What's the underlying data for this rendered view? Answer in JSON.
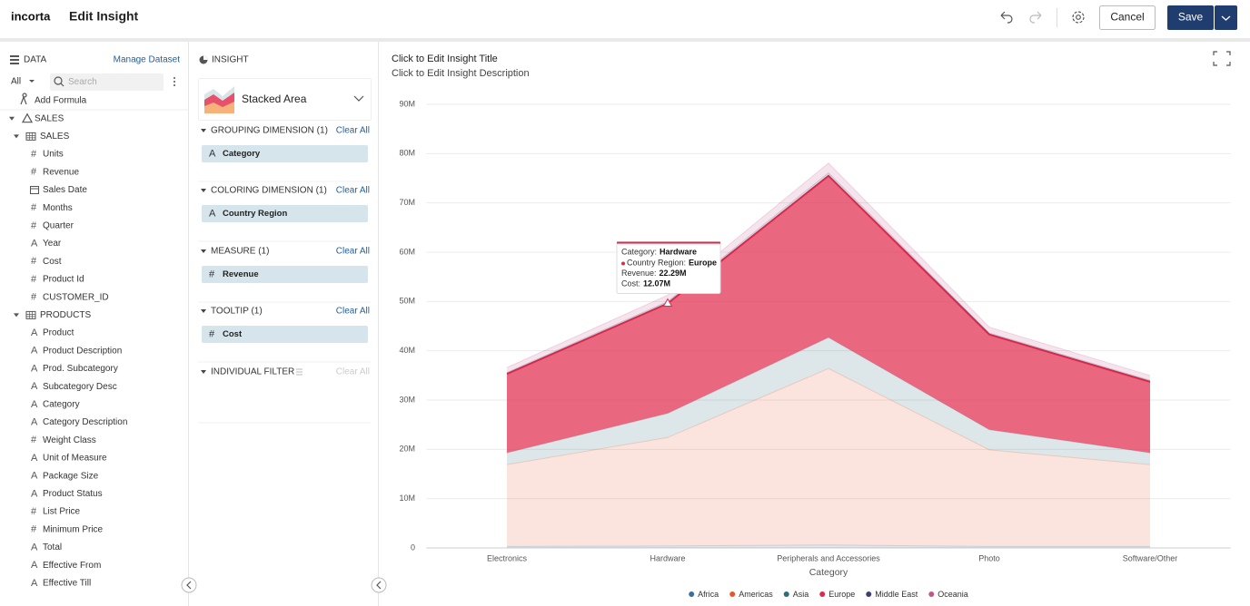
{
  "header": {
    "logo": "incorta",
    "title": "Edit Insight",
    "cancel": "Cancel",
    "save": "Save"
  },
  "data_panel": {
    "title": "DATA",
    "manage": "Manage Dataset",
    "filter": "All",
    "search": "Search",
    "add_formula": "Add Formula",
    "schema": {
      "name": "SALES",
      "tables": [
        {
          "name": "SALES",
          "fields": [
            {
              "icon": "#",
              "name": "Units"
            },
            {
              "icon": "#",
              "name": "Revenue"
            },
            {
              "name": "Sales Date"
            },
            {
              "icon": "#",
              "name": "Months"
            },
            {
              "icon": "#",
              "name": "Quarter"
            },
            {
              "icon": "A",
              "name": "Year"
            },
            {
              "icon": "#",
              "name": "Cost"
            },
            {
              "icon": "#",
              "name": "Product Id"
            },
            {
              "icon": "#",
              "name": "CUSTOMER_ID"
            }
          ]
        },
        {
          "name": "PRODUCTS",
          "fields": [
            {
              "icon": "A",
              "name": "Product"
            },
            {
              "icon": "A",
              "name": "Product Description"
            },
            {
              "icon": "A",
              "name": "Prod. Subcategory"
            },
            {
              "icon": "A",
              "name": "Subcategory Desc"
            },
            {
              "icon": "A",
              "name": "Category"
            },
            {
              "icon": "A",
              "name": "Category Description"
            },
            {
              "icon": "#",
              "name": "Weight Class"
            },
            {
              "icon": "A",
              "name": "Unit of Measure"
            },
            {
              "icon": "A",
              "name": "Package Size"
            },
            {
              "icon": "A",
              "name": "Product Status"
            },
            {
              "icon": "#",
              "name": "List Price"
            },
            {
              "icon": "#",
              "name": "Minimum Price"
            },
            {
              "icon": "A",
              "name": "Total"
            },
            {
              "icon": "A",
              "name": "Effective From"
            },
            {
              "icon": "A",
              "name": "Effective Till"
            }
          ]
        }
      ]
    }
  },
  "insight_panel": {
    "title": "INSIGHT",
    "chart_type": "Stacked Area",
    "sections": [
      {
        "title": "GROUPING DIMENSION (1)",
        "clear": "Clear All",
        "pill": {
          "icon": "A",
          "label": "Category"
        }
      },
      {
        "title": "COLORING DIMENSION (1)",
        "clear": "Clear All",
        "pill": {
          "icon": "A",
          "label": "Country Region"
        }
      },
      {
        "title": "MEASURE (1)",
        "clear": "Clear All",
        "pill": {
          "icon": "#",
          "label": "Revenue"
        }
      },
      {
        "title": "TOOLTIP (1)",
        "clear": "Clear All",
        "pill": {
          "icon": "#",
          "label": "Cost"
        }
      },
      {
        "title": "INDIVIDUAL FILTER",
        "clear": "Clear All"
      }
    ]
  },
  "chart_data": {
    "type": "stacked_area",
    "title": "Click to Edit Insight Title",
    "subtitle": "Click to Edit Insight Description",
    "x_label": "Category",
    "categories": [
      "Electronics",
      "Hardware",
      "Peripherals and Accessories",
      "Photo",
      "Software/Other"
    ],
    "series": [
      {
        "name": "Africa",
        "color": "#3b6fa0",
        "values": [
          300000,
          400000,
          600000,
          300000,
          300000
        ]
      },
      {
        "name": "Americas",
        "color": "#e4572e",
        "values": [
          16600000,
          22000000,
          35800000,
          19600000,
          16600000
        ]
      },
      {
        "name": "Asia",
        "color": "#2e6b78",
        "values": [
          2400000,
          4900000,
          6300000,
          4100000,
          2400000
        ]
      },
      {
        "name": "Europe",
        "color": "#e0284a",
        "values": [
          16000000,
          22290000,
          32800000,
          19300000,
          14400000
        ]
      },
      {
        "name": "Middle East",
        "color": "#3d3f6e",
        "values": [
          300000,
          400000,
          600000,
          300000,
          300000
        ]
      },
      {
        "name": "Oceania",
        "color": "#c2578a",
        "values": [
          1000000,
          1300000,
          2000000,
          1200000,
          1000000
        ]
      }
    ],
    "ylim": [
      0,
      90000000
    ],
    "yticks": [
      0,
      {
        "value": 10000000,
        "label": "10M"
      },
      {
        "value": 20000000,
        "label": "20M"
      },
      {
        "value": 30000000,
        "label": "30M"
      },
      {
        "value": 40000000,
        "label": "40M"
      },
      {
        "value": 50000000,
        "label": "50M"
      },
      {
        "value": 60000000,
        "label": "60M"
      },
      {
        "value": 70000000,
        "label": "70M"
      },
      {
        "value": 80000000,
        "label": "80M"
      },
      {
        "value": 90000000,
        "label": "90M"
      }
    ],
    "grid": true,
    "legend": "bottom",
    "tooltip": {
      "category_label": "Category:",
      "category": "Hardware",
      "series_label": "Country Region:",
      "series": "Europe",
      "value_label": "Revenue:",
      "value": "22.29M",
      "extra_label": "Cost:",
      "extra": "12.07M"
    }
  }
}
